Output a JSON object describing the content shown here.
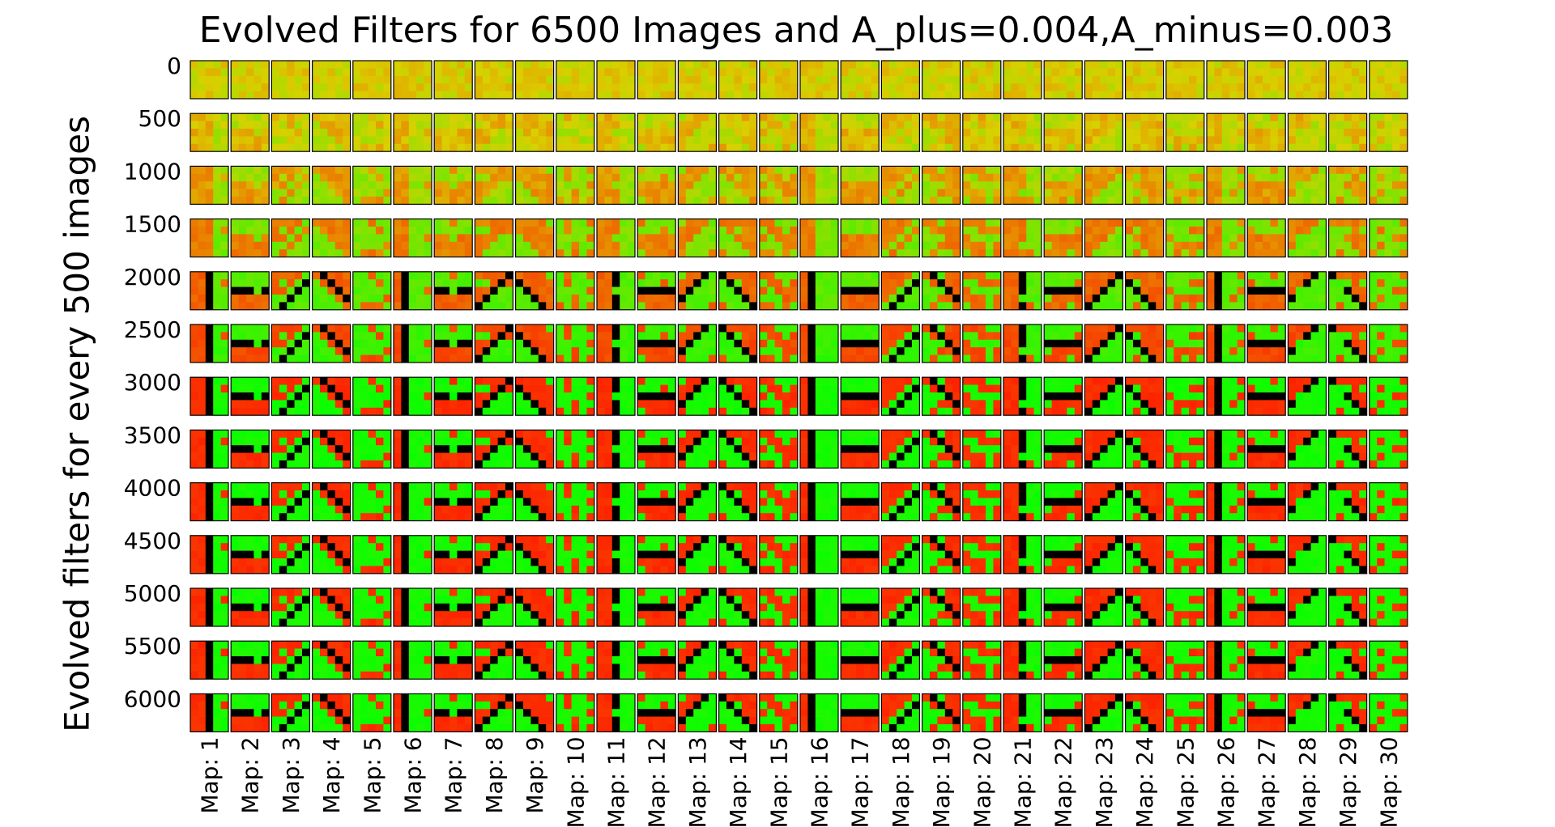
{
  "chart_data": {
    "type": "heatmap",
    "title": "Evolved Filters for 6500 Images and A_plus=0.004,A_minus=0.003",
    "ylabel": "Evolved filters for every 500 images",
    "row_labels": [
      "0",
      "500",
      "1000",
      "1500",
      "2000",
      "2500",
      "3000",
      "3500",
      "4000",
      "4500",
      "5000",
      "5500",
      "6000"
    ],
    "column_labels": [
      "Map: 1",
      "Map: 2",
      "Map: 3",
      "Map: 4",
      "Map: 5",
      "Map: 6",
      "Map: 7",
      "Map: 8",
      "Map: 9",
      "Map: 10",
      "Map: 11",
      "Map: 12",
      "Map: 13",
      "Map: 14",
      "Map: 15",
      "Map: 16",
      "Map: 17",
      "Map: 18",
      "Map: 19",
      "Map: 20",
      "Map: 21",
      "Map: 22",
      "Map: 23",
      "Map: 24",
      "Map: 25",
      "Map: 26",
      "Map: 27",
      "Map: 28",
      "Map: 29",
      "Map: 30"
    ],
    "filter_size": [
      5,
      5
    ],
    "color_map": {
      "low": "#ff1a00",
      "mid": "#d9d000",
      "high": "#00ff00",
      "dark": "#000000"
    }
  }
}
